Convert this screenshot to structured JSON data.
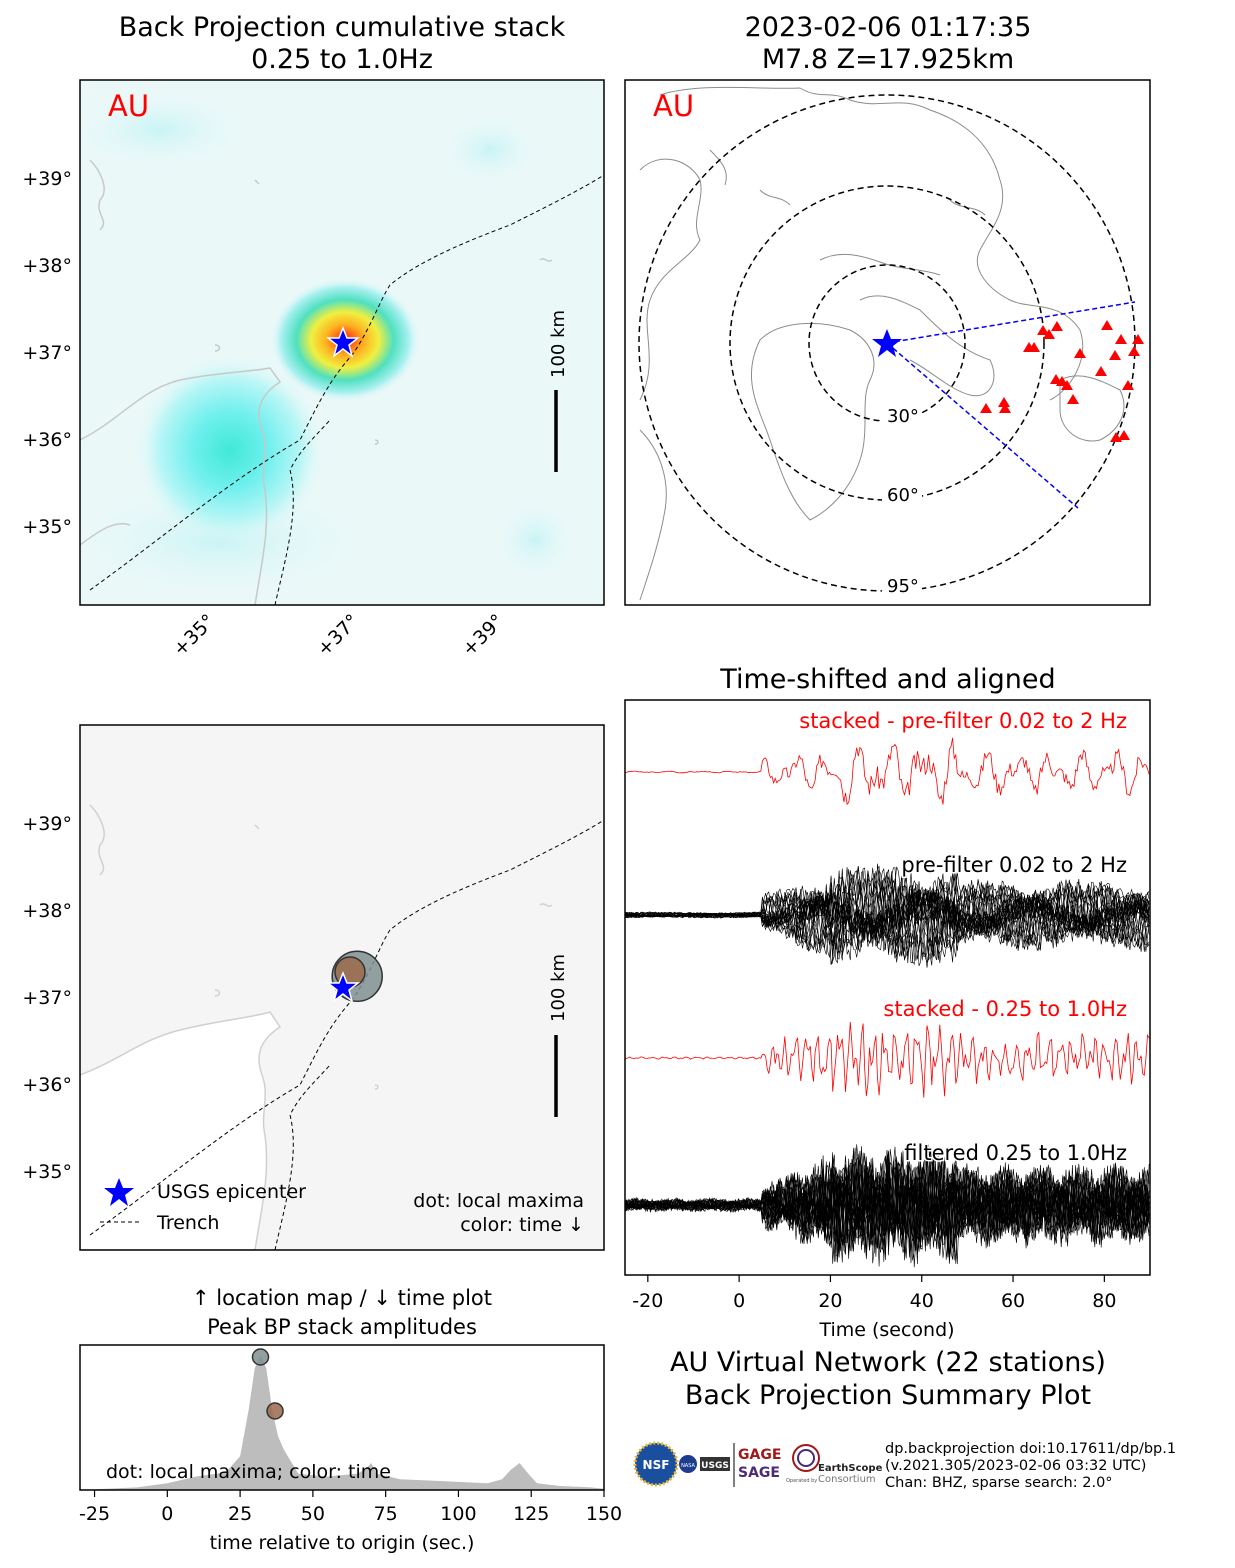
{
  "colors": {
    "label_red": "#ff0000",
    "epicenter_blue": "#0000ff",
    "station_red": "#ff0000",
    "trace_black": "#000000",
    "trace_red": "#ff0000",
    "map_background": "#f5f5f5",
    "heat_cool": "#bff3f5",
    "heat_hot": "#ff2a1a",
    "coast_gray": "#c8c8c8",
    "area_gray": "#bdbdbd",
    "dot_gray": "#7f8f90",
    "dot_brown": "#9a6a4a"
  },
  "panels": {
    "bp_stack": {
      "title_line1": "Back Projection cumulative stack",
      "title_line2": "0.25 to 1.0Hz",
      "network_label": "AU",
      "scalebar_label": "100 km"
    },
    "global_map": {
      "title_line1": "2023-02-06 01:17:35",
      "title_line2": "M7.8 Z=17.925km",
      "network_label": "AU",
      "ring_labels": [
        "30°",
        "60°",
        "95°"
      ]
    },
    "location_map": {
      "scalebar_label": "100 km",
      "legend_epicenter": "USGS epicenter",
      "legend_trench": "Trench",
      "note_line1": "dot: local maxima",
      "note_line2": "color: time ↓"
    },
    "time_plot": {
      "title_line1": "↑ location map / ↓ time plot",
      "title_line2": "Peak BP stack amplitudes",
      "xlabel": "time relative to origin (sec.)",
      "note": "dot: local maxima; color: time"
    },
    "seismograms": {
      "title": "Time-shifted and aligned",
      "xlabel": "Time (second)",
      "label_stacked_prefilter": "stacked - pre-filter 0.02 to 2 Hz",
      "label_prefilter": "pre-filter 0.02 to 2 Hz",
      "label_stacked_band": "stacked - 0.25 to 1.0Hz",
      "label_filtered": "filtered 0.25 to 1.0Hz"
    }
  },
  "summary": {
    "line1": "AU Virtual Network (22 stations)",
    "line2": "Back Projection Summary Plot"
  },
  "footer": {
    "line1": "dp.backprojection doi:10.17611/dp/bp.1",
    "line2": "(v.2021.305/2023-02-06 03:32 UTC)",
    "line3": "Chan: BHZ, sparse search: 2.0°"
  },
  "logos": {
    "nsf": "NSF",
    "nasa": "NASA",
    "usgs": "USGS",
    "gage": "GAGE",
    "sage": "SAGE",
    "earthscope": "EarthScope",
    "consortium": "Consortium",
    "operated_by": "Operated by"
  },
  "chart_data": [
    {
      "type": "heatmap",
      "title": "Back Projection cumulative stack 0.25 to 1.0Hz",
      "x_ticks": [
        "+35°",
        "+37°",
        "+39°"
      ],
      "y_ticks": [
        "+39°",
        "+38°",
        "+37°",
        "+36°",
        "+35°"
      ],
      "epicenter": {
        "lon": 37.0,
        "lat": 37.1
      },
      "hotspots": [
        {
          "lon": 37.0,
          "lat": 37.2,
          "intensity": 1.0
        },
        {
          "lon": 35.0,
          "lat": 35.9,
          "intensity": 0.45
        }
      ]
    },
    {
      "type": "scatter",
      "title": "2023-02-06 01:17:35 M7.8 Z=17.925km",
      "distance_rings_deg": [
        30,
        60,
        95
      ],
      "station_count": 22
    },
    {
      "type": "scatter",
      "title": "location map",
      "x_ticks": [
        "+35°",
        "+37°",
        "+39°"
      ],
      "y_ticks": [
        "+39°",
        "+38°",
        "+37°",
        "+36°",
        "+35°"
      ],
      "points": [
        {
          "lon": 37.1,
          "lat": 37.2,
          "color": "gray",
          "time_sec": 32
        },
        {
          "lon": 37.0,
          "lat": 37.25,
          "color": "brown",
          "time_sec": 37
        }
      ]
    },
    {
      "type": "area",
      "title": "Peak BP stack amplitudes",
      "xlabel": "time relative to origin (sec.)",
      "xlim": [
        -30,
        150
      ],
      "x_ticks": [
        -25,
        0,
        25,
        50,
        75,
        100,
        125,
        150
      ],
      "x": [
        -30,
        -10,
        0,
        10,
        20,
        25,
        28,
        30,
        32,
        34,
        36,
        38,
        40,
        45,
        55,
        65,
        68,
        70,
        72,
        80,
        90,
        100,
        110,
        115,
        118,
        121,
        124,
        127,
        135,
        145,
        150
      ],
      "values": [
        0,
        0.02,
        0.05,
        0.1,
        0.13,
        0.25,
        0.6,
        0.9,
        1.0,
        0.9,
        0.6,
        0.4,
        0.3,
        0.12,
        0.1,
        0.12,
        0.15,
        0.2,
        0.12,
        0.08,
        0.07,
        0.06,
        0.05,
        0.08,
        0.15,
        0.2,
        0.12,
        0.05,
        0.03,
        0.02,
        0.01
      ],
      "local_maxima": [
        {
          "time_sec": 32,
          "value": 1.0,
          "color": "gray"
        },
        {
          "time_sec": 37,
          "value": 0.6,
          "color": "brown"
        }
      ]
    },
    {
      "type": "line",
      "title": "Time-shifted and aligned",
      "xlabel": "Time (second)",
      "xlim": [
        -25,
        90
      ],
      "x_ticks": [
        -20,
        0,
        20,
        40,
        60,
        80
      ],
      "series": [
        {
          "name": "stacked - pre-filter 0.02 to 2 Hz"
        },
        {
          "name": "pre-filter 0.02 to 2 Hz"
        },
        {
          "name": "stacked - 0.25 to 1.0Hz"
        },
        {
          "name": "filtered 0.25 to 1.0Hz"
        }
      ],
      "signal_onset_sec": 5
    }
  ]
}
